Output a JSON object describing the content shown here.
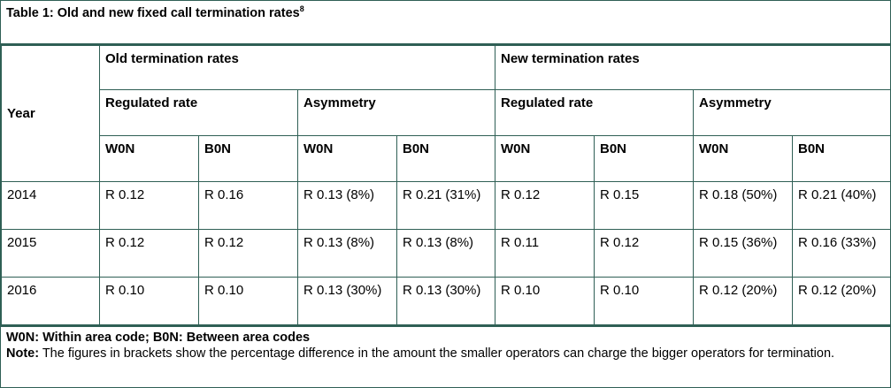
{
  "caption": {
    "text": "Table 1: Old and new fixed call termination rates",
    "footnote_ref": "8"
  },
  "headers": {
    "year": "Year",
    "old": "Old termination rates",
    "new": "New termination rates",
    "regulated": "Regulated rate",
    "asymmetry": "Asymmetry",
    "won": "W0N",
    "bon": "B0N"
  },
  "rows": [
    {
      "year": "2014",
      "values": [
        "R 0.12",
        "R 0.16",
        "R 0.13 (8%)",
        "R 0.21 (31%)",
        "R 0.12",
        "R 0.15",
        "R 0.18 (50%)",
        "R 0.21 (40%)"
      ]
    },
    {
      "year": "2015",
      "values": [
        "R 0.12",
        "R 0.12",
        "R 0.13 (8%)",
        "R 0.13 (8%)",
        "R 0.11",
        "R 0.12",
        "R 0.15 (36%)",
        "R 0.16 (33%)"
      ]
    },
    {
      "year": "2016",
      "values": [
        "R 0.10",
        "R 0.10",
        "R 0.13 (30%)",
        "R 0.13 (30%)",
        "R 0.10",
        "R 0.10",
        "R 0.12 (20%)",
        "R 0.12 (20%)"
      ]
    }
  ],
  "footer": {
    "legend": "W0N: Within area code; B0N: Between area codes",
    "note_label": "Note:",
    "note_text": " The figures in brackets show the percentage difference in the amount the smaller operators can charge the bigger operators for termination."
  }
}
